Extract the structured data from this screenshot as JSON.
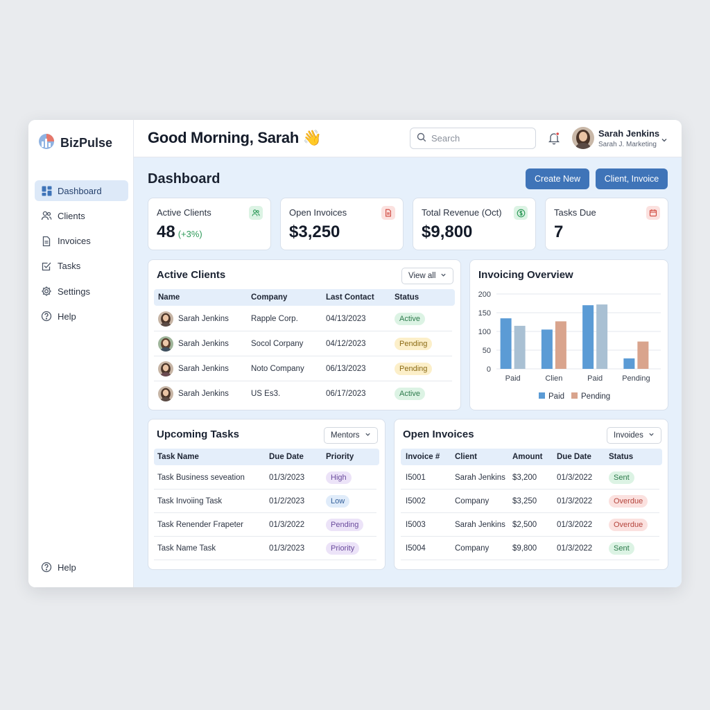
{
  "brand": {
    "name": "BizPulse"
  },
  "sidebar": {
    "items": [
      {
        "label": "Dashboard",
        "icon": "dashboard-icon",
        "active": true
      },
      {
        "label": "Clients",
        "icon": "users-icon"
      },
      {
        "label": "Invoices",
        "icon": "document-icon"
      },
      {
        "label": "Tasks",
        "icon": "checklist-icon"
      },
      {
        "label": "Settings",
        "icon": "gear-icon"
      },
      {
        "label": "Help",
        "icon": "help-icon"
      }
    ],
    "bottom": {
      "label": "Help",
      "icon": "help-icon"
    }
  },
  "header": {
    "greeting": "Good Morning, Sarah 👋",
    "search_placeholder": "Search",
    "user": {
      "name": "Sarah Jenkins",
      "role": "Sarah J. Marketing"
    }
  },
  "page": {
    "title": "Dashboard",
    "buttons": {
      "create": "Create New",
      "client_invoice": "Client, Invoice"
    }
  },
  "stats": [
    {
      "label": "Active Clients",
      "value": "48",
      "delta": "(+3%)",
      "icon": "users-icon",
      "color": "#2f9a5a"
    },
    {
      "label": "Open Invoices",
      "value": "$3,250",
      "icon": "document-icon",
      "color": "#d0473d"
    },
    {
      "label": "Total Revenue (Oct)",
      "value": "$9,800",
      "icon": "dollar-icon",
      "color": "#2f9a5a"
    },
    {
      "label": "Tasks Due",
      "value": "7",
      "icon": "calendar-icon",
      "color": "#d0473d"
    }
  ],
  "clients": {
    "title": "Active Clients",
    "dropdown": "View all",
    "columns": [
      "Name",
      "Company",
      "Last Contact",
      "Status"
    ],
    "rows": [
      {
        "name": "Sarah Jenkins",
        "company": "Rapple Corp.",
        "last_contact": "04/13/2023",
        "status": "Active"
      },
      {
        "name": "Sarah Jenkins",
        "company": "Socol Corpany",
        "last_contact": "04/12/2023",
        "status": "Pending"
      },
      {
        "name": "Sarah Jenkins",
        "company": "Noto Company",
        "last_contact": "06/13/2023",
        "status": "Pending"
      },
      {
        "name": "Sarah Jenkins",
        "company": "US Es3.",
        "last_contact": "06/17/2023",
        "status": "Active"
      }
    ]
  },
  "chart_data": {
    "type": "bar",
    "title": "Invoicing Overview",
    "categories": [
      "Paid",
      "Clien",
      "Paid",
      "Pending"
    ],
    "series": [
      {
        "name": "Paid",
        "color": "#5b9bd5",
        "values": [
          135,
          105,
          170,
          28
        ]
      },
      {
        "name": "Pending",
        "color": "#d9a48d",
        "values": [
          115,
          127,
          172,
          73
        ]
      }
    ],
    "second_bar_color_first_group": "#a9c0d3",
    "second_bar_color_third_group": "#a9c0d3",
    "ylim": [
      0,
      200
    ],
    "yticks": [
      0,
      50,
      100,
      150,
      200
    ],
    "legend": [
      "Paid",
      "Pending"
    ],
    "legend_position": "bottom",
    "grid": true
  },
  "tasks": {
    "title": "Upcoming Tasks",
    "dropdown": "Mentors",
    "columns": [
      "Task Name",
      "Due Date",
      "Priority"
    ],
    "rows": [
      {
        "name": "Task Business seveation",
        "due": "01/3/2023",
        "priority": "High",
        "style": "purple"
      },
      {
        "name": "Task Invoiing Task",
        "due": "01/2/2023",
        "priority": "Low",
        "style": "blue"
      },
      {
        "name": "Task Renender Frapeter",
        "due": "01/3/2022",
        "priority": "Pending",
        "style": "purple"
      },
      {
        "name": "Task Name Task",
        "due": "01/3/2023",
        "priority": "Priority",
        "style": "purple"
      }
    ]
  },
  "invoices": {
    "title": "Open Invoices",
    "dropdown": "Invoides",
    "columns": [
      "Invoice #",
      "Client",
      "Amount",
      "Due Date",
      "Status"
    ],
    "rows": [
      {
        "id": "I5001",
        "client": "Sarah Jenkins",
        "amount": "$3,200",
        "due": "01/3/2022",
        "status": "Sent",
        "style": "green"
      },
      {
        "id": "I5002",
        "client": "Company",
        "amount": "$3,250",
        "due": "01/3/2022",
        "status": "Overdue",
        "style": "red"
      },
      {
        "id": "I5003",
        "client": "Sarah Jenkins",
        "amount": "$2,500",
        "due": "01/3/2022",
        "status": "Overdue",
        "style": "red"
      },
      {
        "id": "I5004",
        "client": "Company",
        "amount": "$9,800",
        "due": "01/3/2022",
        "status": "Sent",
        "style": "green"
      }
    ]
  }
}
